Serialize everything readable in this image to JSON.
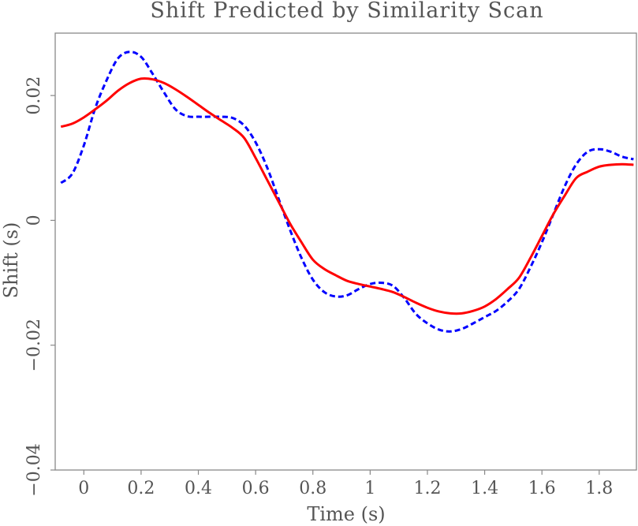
{
  "chart_data": {
    "type": "line",
    "title": "Shift Predicted by Similarity Scan",
    "xlabel": "Time (s)",
    "ylabel": "Shift (s)",
    "xlim": [
      -0.1,
      1.93
    ],
    "ylim": [
      -0.04,
      0.03
    ],
    "xticks": [
      0,
      0.2,
      0.4,
      0.6,
      0.8,
      1,
      1.2,
      1.4,
      1.6,
      1.8
    ],
    "xtick_labels": [
      "0",
      "0.2",
      "0.4",
      "0.6",
      "0.8",
      "1",
      "1.2",
      "1.4",
      "1.6",
      "1.8"
    ],
    "yticks": [
      -0.04,
      -0.02,
      0,
      0.02
    ],
    "ytick_labels": [
      "−0.04",
      "−0.02",
      "0",
      "0.02"
    ],
    "grid": false,
    "series": [
      {
        "color": "#0000ff",
        "style": "dashed",
        "points": [
          [
            -0.08,
            0.006
          ],
          [
            -0.04,
            0.0075
          ],
          [
            0.0,
            0.012
          ],
          [
            0.04,
            0.018
          ],
          [
            0.08,
            0.0225
          ],
          [
            0.12,
            0.026
          ],
          [
            0.16,
            0.027
          ],
          [
            0.2,
            0.0262
          ],
          [
            0.24,
            0.0235
          ],
          [
            0.28,
            0.0205
          ],
          [
            0.32,
            0.0178
          ],
          [
            0.36,
            0.0167
          ],
          [
            0.4,
            0.0166
          ],
          [
            0.44,
            0.0166
          ],
          [
            0.48,
            0.0166
          ],
          [
            0.52,
            0.0164
          ],
          [
            0.56,
            0.0152
          ],
          [
            0.6,
            0.0125
          ],
          [
            0.64,
            0.0085
          ],
          [
            0.68,
            0.0035
          ],
          [
            0.72,
            -0.0015
          ],
          [
            0.76,
            -0.006
          ],
          [
            0.8,
            -0.0095
          ],
          [
            0.84,
            -0.0115
          ],
          [
            0.88,
            -0.0122
          ],
          [
            0.92,
            -0.012
          ],
          [
            0.96,
            -0.011
          ],
          [
            1.0,
            -0.0102
          ],
          [
            1.04,
            -0.01
          ],
          [
            1.08,
            -0.0105
          ],
          [
            1.12,
            -0.0125
          ],
          [
            1.16,
            -0.015
          ],
          [
            1.2,
            -0.0165
          ],
          [
            1.24,
            -0.0175
          ],
          [
            1.28,
            -0.0178
          ],
          [
            1.32,
            -0.0174
          ],
          [
            1.36,
            -0.0165
          ],
          [
            1.4,
            -0.0155
          ],
          [
            1.44,
            -0.0145
          ],
          [
            1.48,
            -0.013
          ],
          [
            1.52,
            -0.011
          ],
          [
            1.56,
            -0.0075
          ],
          [
            1.6,
            -0.0035
          ],
          [
            1.64,
            0.001
          ],
          [
            1.68,
            0.0055
          ],
          [
            1.72,
            0.009
          ],
          [
            1.76,
            0.011
          ],
          [
            1.8,
            0.0114
          ],
          [
            1.84,
            0.011
          ],
          [
            1.88,
            0.0102
          ],
          [
            1.92,
            0.0098
          ]
        ]
      },
      {
        "color": "#ff0000",
        "style": "solid",
        "points": [
          [
            -0.08,
            0.015
          ],
          [
            -0.04,
            0.0155
          ],
          [
            0.0,
            0.0165
          ],
          [
            0.04,
            0.0178
          ],
          [
            0.08,
            0.0192
          ],
          [
            0.12,
            0.0208
          ],
          [
            0.16,
            0.022
          ],
          [
            0.2,
            0.0227
          ],
          [
            0.24,
            0.0226
          ],
          [
            0.28,
            0.022
          ],
          [
            0.32,
            0.021
          ],
          [
            0.36,
            0.0198
          ],
          [
            0.4,
            0.0185
          ],
          [
            0.44,
            0.0172
          ],
          [
            0.48,
            0.016
          ],
          [
            0.52,
            0.0148
          ],
          [
            0.56,
            0.0132
          ],
          [
            0.6,
            0.01
          ],
          [
            0.64,
            0.0065
          ],
          [
            0.68,
            0.003
          ],
          [
            0.72,
            -0.0005
          ],
          [
            0.76,
            -0.0035
          ],
          [
            0.8,
            -0.0063
          ],
          [
            0.84,
            -0.0078
          ],
          [
            0.88,
            -0.0088
          ],
          [
            0.92,
            -0.0097
          ],
          [
            0.96,
            -0.0102
          ],
          [
            1.0,
            -0.0106
          ],
          [
            1.04,
            -0.011
          ],
          [
            1.08,
            -0.0115
          ],
          [
            1.12,
            -0.0123
          ],
          [
            1.16,
            -0.0132
          ],
          [
            1.2,
            -0.014
          ],
          [
            1.24,
            -0.0146
          ],
          [
            1.28,
            -0.0149
          ],
          [
            1.32,
            -0.0149
          ],
          [
            1.36,
            -0.0145
          ],
          [
            1.4,
            -0.0138
          ],
          [
            1.44,
            -0.0126
          ],
          [
            1.48,
            -0.011
          ],
          [
            1.52,
            -0.0092
          ],
          [
            1.56,
            -0.006
          ],
          [
            1.6,
            -0.0025
          ],
          [
            1.64,
            0.001
          ],
          [
            1.68,
            0.004
          ],
          [
            1.72,
            0.0068
          ],
          [
            1.76,
            0.0078
          ],
          [
            1.8,
            0.0086
          ],
          [
            1.84,
            0.0089
          ],
          [
            1.88,
            0.009
          ],
          [
            1.92,
            0.0089
          ]
        ]
      }
    ]
  }
}
